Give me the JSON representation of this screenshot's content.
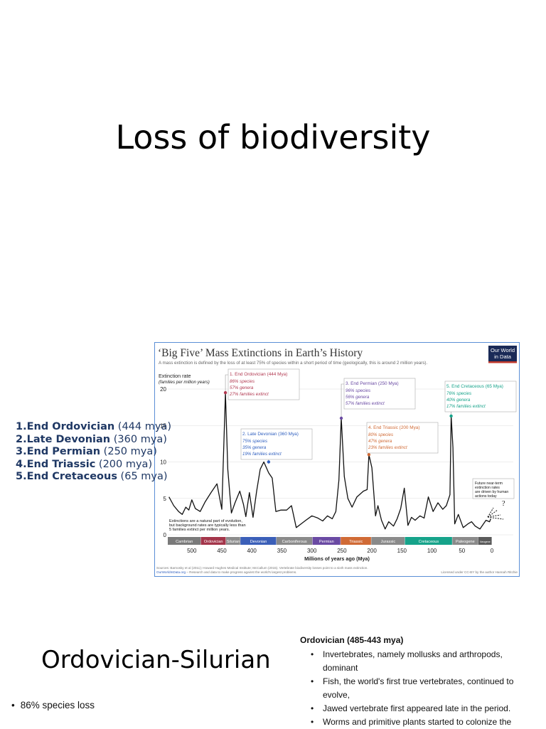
{
  "title": "Loss of biodiversity",
  "extinctions_list": [
    {
      "num": "1.",
      "name": "End Ordovician",
      "age": " (444 mya)"
    },
    {
      "num": "2.",
      "name": "Late Devonian",
      "age": " (360 mya)"
    },
    {
      "num": "3.",
      "name": "End Permian",
      "age": " (250 mya)"
    },
    {
      "num": "4.",
      "name": "End Triassic",
      "age": " (200 mya)"
    },
    {
      "num": "5.",
      "name": "End Cretaceous",
      "age": " (65 mya)"
    }
  ],
  "chart": {
    "title": "‘Big Five’ Mass Extinctions in Earth’s History",
    "subtitle": "A mass extinction is defined by the loss of at least 75% of species within a short period of time (geologically, this is around 2 million years).",
    "logo_line1": "Our World",
    "logo_line2": "in Data",
    "ylabel_line1": "Extinction rate",
    "ylabel_line2": "(families per million years)",
    "xlabel": "Millions of years ago (Mya)",
    "note_line1": "Extinctions are a natural part of evolution,",
    "note_line2": "but background rates are typically less than",
    "note_line3": "5 families extinct per million years.",
    "future_line1": "Future near-term",
    "future_line2": "extinction rates",
    "future_line3": "are driven by human",
    "future_line4": "actions today",
    "future_q": "?",
    "sources_line1": "Sources: Barnosky et al (2011); Howard Hughes Medical Institute; McCallum (2015). Vertebrate biodiversity losses point to a sixth mass extinction.",
    "sources_line2_link": "OurWorldInData.org",
    "sources_line2_rest": " – Research and data to make progress against the world's largest problems.",
    "license": "Licensed under CC-BY by the author Hannah Ritchie",
    "periods": [
      {
        "name": "Cambrian",
        "start": 541,
        "end": 485,
        "color": "#7a7a7a"
      },
      {
        "name": "Ordovician",
        "start": 485,
        "end": 443,
        "color": "#a3354a"
      },
      {
        "name": "Silurian",
        "start": 443,
        "end": 419,
        "color": "#8c8c8c"
      },
      {
        "name": "Devonian",
        "start": 419,
        "end": 359,
        "color": "#3b5fb8"
      },
      {
        "name": "Carboniferous",
        "start": 359,
        "end": 299,
        "color": "#8a8a8a"
      },
      {
        "name": "Permian",
        "start": 299,
        "end": 252,
        "color": "#6a4aa3"
      },
      {
        "name": "Triassic",
        "start": 252,
        "end": 201,
        "color": "#d06a35"
      },
      {
        "name": "Jurassic",
        "start": 201,
        "end": 145,
        "color": "#8a8a8a"
      },
      {
        "name": "Cretaceous",
        "start": 145,
        "end": 66,
        "color": "#16a38a"
      },
      {
        "name": "Paleogene",
        "start": 66,
        "end": 23,
        "color": "#8a8a8a"
      },
      {
        "name": "Neogene",
        "start": 23,
        "end": 0,
        "color": "#5a5a5a"
      }
    ],
    "annotations": [
      {
        "title": "1. End Ordovician (444 Mya)",
        "lines": [
          "86% species",
          "57% genera",
          "27% families extinct"
        ],
        "color": "#b23a52",
        "x": 444,
        "y": 19.5
      },
      {
        "title": "2. Late Devonian (360 Mya)",
        "lines": [
          "75% species",
          "35% genera",
          "19% families extinct"
        ],
        "color": "#2f5fbf",
        "x": 372,
        "y": 10
      },
      {
        "title": "3. End Permian (250 Mya)",
        "lines": [
          "96% species",
          "56% genera",
          "57% families extinct"
        ],
        "color": "#6a4aa3",
        "x": 251,
        "y": 16
      },
      {
        "title": "4. End Triassic (200 Mya)",
        "lines": [
          "80% species",
          "47% genera",
          "23% families extinct"
        ],
        "color": "#d06a35",
        "x": 205,
        "y": 11
      },
      {
        "title": "5. End Cretaceous (65 Mya)",
        "lines": [
          "76% species",
          "40% genera",
          "17% families extinct"
        ],
        "color": "#16a38a",
        "x": 68,
        "y": 16.3
      }
    ]
  },
  "chart_data": {
    "type": "line",
    "title": "‘Big Five’ Mass Extinctions in Earth’s History",
    "xlabel": "Millions of years ago (Mya)",
    "ylabel": "Extinction rate (families per million years)",
    "xlim": [
      540,
      0
    ],
    "ylim": [
      0,
      20
    ],
    "xticks": [
      500,
      450,
      400,
      350,
      300,
      250,
      200,
      150,
      100,
      50,
      0
    ],
    "yticks": [
      0,
      5,
      10,
      15,
      20
    ],
    "grid": true,
    "series": [
      {
        "x": [
          538,
          530,
          522,
          516,
          510,
          505,
          500,
          494,
          486,
          478,
          468,
          458,
          450,
          444,
          440,
          434,
          428,
          420,
          414,
          410,
          404,
          398,
          392,
          386,
          380,
          372,
          366,
          360,
          352,
          342,
          334,
          326,
          318,
          310,
          300,
          290,
          282,
          274,
          266,
          260,
          255,
          251,
          246,
          240,
          233,
          225,
          214,
          208,
          205,
          200,
          194,
          190,
          184,
          178,
          172,
          164,
          158,
          152,
          146,
          140,
          134,
          128,
          120,
          113,
          106,
          98,
          90,
          82,
          76,
          70,
          68,
          65,
          62,
          56,
          48,
          40,
          34,
          28,
          20,
          10,
          4,
          2
        ],
        "y": [
          5.2,
          4.0,
          3.2,
          2.8,
          3.8,
          3.4,
          4.8,
          3.6,
          3.2,
          4.5,
          5.8,
          7.0,
          3.5,
          19.5,
          9.0,
          3.0,
          4.4,
          6.0,
          4.2,
          2.5,
          5.8,
          2.4,
          6.0,
          9.0,
          10.0,
          8.5,
          7.8,
          3.2,
          3.4,
          3.4,
          4.0,
          1.0,
          1.5,
          2.0,
          2.6,
          2.3,
          1.9,
          2.6,
          2.2,
          3.2,
          7.5,
          16.0,
          8.0,
          5.0,
          3.8,
          5.2,
          6.0,
          6.2,
          11.0,
          9.2,
          2.6,
          4.0,
          2.0,
          0.8,
          1.8,
          1.2,
          2.2,
          3.6,
          6.4,
          1.3,
          2.4,
          2.0,
          2.6,
          2.3,
          5.2,
          3.2,
          4.4,
          3.5,
          4.0,
          5.5,
          16.3,
          12.0,
          1.5,
          2.8,
          1.0,
          1.5,
          1.8,
          1.2,
          0.8,
          2.0,
          1.8,
          2.2
        ]
      }
    ]
  },
  "section_title": "Ordovician-Silurian",
  "bullet_left": "86% species loss",
  "ordovician": {
    "heading": "Ordovician (485-443 mya)",
    "items": [
      "Invertebrates, namely mollusks and arthropods, dominant",
      "Fish, the world's first true vertebrates, continued to evolve,",
      "Jawed vertebrate first appeared late in the period.",
      "Worms and primitive plants started to colonize the"
    ]
  },
  "colors": {
    "list_text": "#1f3864",
    "chart_border": "#5b8fd6",
    "logo_bg": "#1a2a57",
    "logo_accent": "#c0392b"
  }
}
